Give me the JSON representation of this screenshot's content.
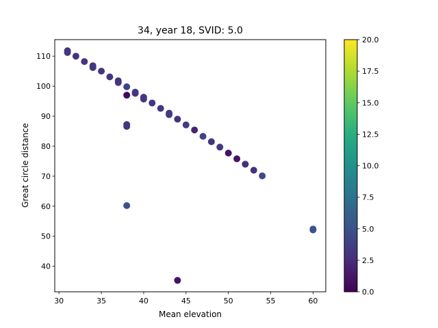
{
  "chart_data": {
    "type": "scatter",
    "title": "34, year 18, SVID: 5.0",
    "xlabel": "Mean elevation",
    "ylabel": "Great circle distance",
    "xlim": [
      29.5,
      61.5
    ],
    "ylim": [
      31.5,
      115.5
    ],
    "xticks": [
      30,
      35,
      40,
      45,
      50,
      55,
      60
    ],
    "yticks": [
      40,
      50,
      60,
      70,
      80,
      90,
      100,
      110
    ],
    "grid": false,
    "colormap": "viridis",
    "colorbar": {
      "range": [
        0.0,
        20.0
      ],
      "ticks": [
        "0.0",
        "2.5",
        "5.0",
        "7.5",
        "10.0",
        "12.5",
        "15.0",
        "17.5",
        "20.0"
      ]
    },
    "points": [
      {
        "x": 31,
        "y": 111.8,
        "c": 3.0
      },
      {
        "x": 31,
        "y": 111.2,
        "c": 3.2
      },
      {
        "x": 32,
        "y": 110.0,
        "c": 3.0
      },
      {
        "x": 33,
        "y": 108.2,
        "c": 3.0
      },
      {
        "x": 34,
        "y": 106.8,
        "c": 3.0
      },
      {
        "x": 34,
        "y": 106.2,
        "c": 3.2
      },
      {
        "x": 35,
        "y": 105.0,
        "c": 3.0
      },
      {
        "x": 36,
        "y": 103.1,
        "c": 3.2
      },
      {
        "x": 37,
        "y": 101.8,
        "c": 3.0
      },
      {
        "x": 37,
        "y": 101.2,
        "c": 3.0
      },
      {
        "x": 38,
        "y": 99.8,
        "c": 4.0
      },
      {
        "x": 38,
        "y": 97.0,
        "c": 0.5
      },
      {
        "x": 39,
        "y": 98.0,
        "c": 3.0
      },
      {
        "x": 39,
        "y": 97.6,
        "c": 3.2
      },
      {
        "x": 40,
        "y": 96.3,
        "c": 3.0
      },
      {
        "x": 40,
        "y": 95.7,
        "c": 3.2
      },
      {
        "x": 41,
        "y": 94.4,
        "c": 3.2
      },
      {
        "x": 42,
        "y": 92.6,
        "c": 3.2
      },
      {
        "x": 43,
        "y": 91.0,
        "c": 3.2
      },
      {
        "x": 43,
        "y": 90.5,
        "c": 3.5
      },
      {
        "x": 44,
        "y": 89.0,
        "c": 3.0
      },
      {
        "x": 45,
        "y": 87.1,
        "c": 3.5
      },
      {
        "x": 46,
        "y": 85.4,
        "c": 2.0
      },
      {
        "x": 47,
        "y": 83.3,
        "c": 4.0
      },
      {
        "x": 48,
        "y": 81.5,
        "c": 3.0
      },
      {
        "x": 49,
        "y": 79.7,
        "c": 3.2
      },
      {
        "x": 50,
        "y": 77.7,
        "c": 1.0
      },
      {
        "x": 51,
        "y": 75.8,
        "c": 1.0
      },
      {
        "x": 52,
        "y": 74.0,
        "c": 2.8
      },
      {
        "x": 53,
        "y": 72.0,
        "c": 2.8
      },
      {
        "x": 54,
        "y": 70.1,
        "c": 4.5
      },
      {
        "x": 38,
        "y": 87.2,
        "c": 3.0
      },
      {
        "x": 38,
        "y": 86.6,
        "c": 3.2
      },
      {
        "x": 38,
        "y": 60.2,
        "c": 5.0
      },
      {
        "x": 44,
        "y": 35.3,
        "c": 1.0
      },
      {
        "x": 60,
        "y": 52.4,
        "c": 5.5
      },
      {
        "x": 60,
        "y": 52.1,
        "c": 5.0
      }
    ]
  }
}
